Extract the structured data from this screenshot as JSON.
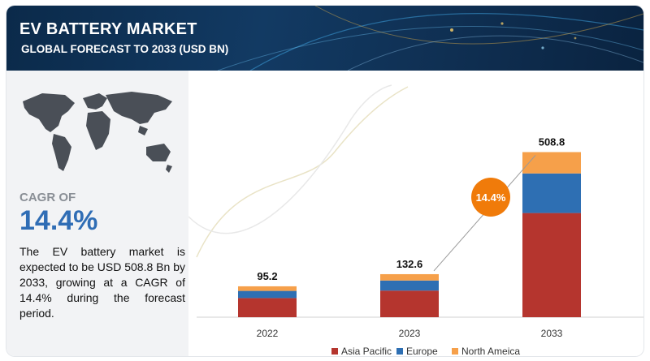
{
  "header": {
    "title": "EV BATTERY MARKET",
    "subtitle": "GLOBAL FORECAST TO 2033 (USD BN)"
  },
  "summary": {
    "cagr_label": "CAGR OF",
    "cagr_value": "14.4%",
    "description": "The EV battery market is expected to be USD 508.8 Bn by 2033, growing at a CAGR of 14.4% during the forecast period."
  },
  "colors": {
    "banner": "#0f2f52",
    "cagr_text": "#2f6db5",
    "badge": "#f07b0a"
  },
  "chart_data": {
    "type": "bar",
    "stacked": true,
    "categories": [
      "2022",
      "2023",
      "2033"
    ],
    "totals": [
      95.2,
      132.6,
      508.8
    ],
    "total_labels": [
      "95.2",
      "132.6",
      "508.8"
    ],
    "series": [
      {
        "name": "Asia Pacific",
        "color": "#b5352e",
        "values": [
          59.0,
          82.0,
          321.0
        ]
      },
      {
        "name": "Europe",
        "color": "#2e6fb3",
        "values": [
          22.0,
          31.0,
          122.0
        ]
      },
      {
        "name": "North Ameica",
        "color": "#f6a04a",
        "values": [
          14.2,
          19.6,
          65.8
        ]
      }
    ],
    "annotation": "14.4%",
    "ylim": [
      0,
      520
    ],
    "legend_position": "bottom",
    "grid": false
  }
}
